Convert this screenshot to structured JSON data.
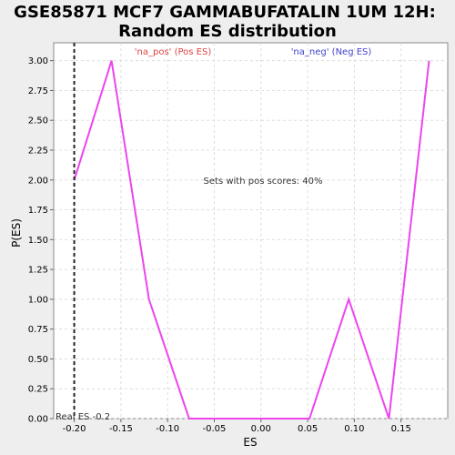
{
  "chart_data": {
    "type": "line",
    "title_line1": "GSE85871 MCF7 GAMMABUFATALIN 1UM 12H:",
    "title_line2": "Random ES distribution",
    "xlabel": "ES",
    "ylabel": "P(ES)",
    "xlim": [
      -0.222,
      0.2
    ],
    "ylim": [
      0,
      3.15
    ],
    "x_ticks": [
      -0.2,
      -0.15,
      -0.1,
      -0.05,
      0.0,
      0.05,
      0.1,
      0.15
    ],
    "x_tick_labels": [
      "-0.20",
      "-0.15",
      "-0.10",
      "-0.05",
      "0.00",
      "0.05",
      "0.10",
      "0.15"
    ],
    "y_ticks": [
      0,
      0.25,
      0.5,
      0.75,
      1.0,
      1.25,
      1.5,
      1.75,
      2.0,
      2.25,
      2.5,
      2.75,
      3.0
    ],
    "y_tick_labels": [
      "0.00",
      "0.25",
      "0.50",
      "0.75",
      "1.00",
      "1.25",
      "1.50",
      "1.75",
      "2.00",
      "2.25",
      "2.50",
      "2.75",
      "3.00"
    ],
    "grid": true,
    "series": [
      {
        "color": "#ee44ee",
        "x": [
          -0.2,
          -0.16,
          -0.12,
          -0.077,
          -0.034,
          0.009,
          0.052,
          0.094,
          0.137,
          0.18
        ],
        "y": [
          2.0,
          3.0,
          1.0,
          0.0,
          0.0,
          0.0,
          0.0,
          1.0,
          0.0,
          3.0
        ]
      }
    ],
    "real_es": -0.2,
    "real_es_label": "Real ES -0.2",
    "pos_label": "'na_pos' (Pos ES)",
    "pos_color": "#dd4444",
    "neg_label": "'na_neg' (Neg ES)",
    "neg_color": "#4444cc",
    "center_annotation": "Sets with pos scores: 40%"
  }
}
